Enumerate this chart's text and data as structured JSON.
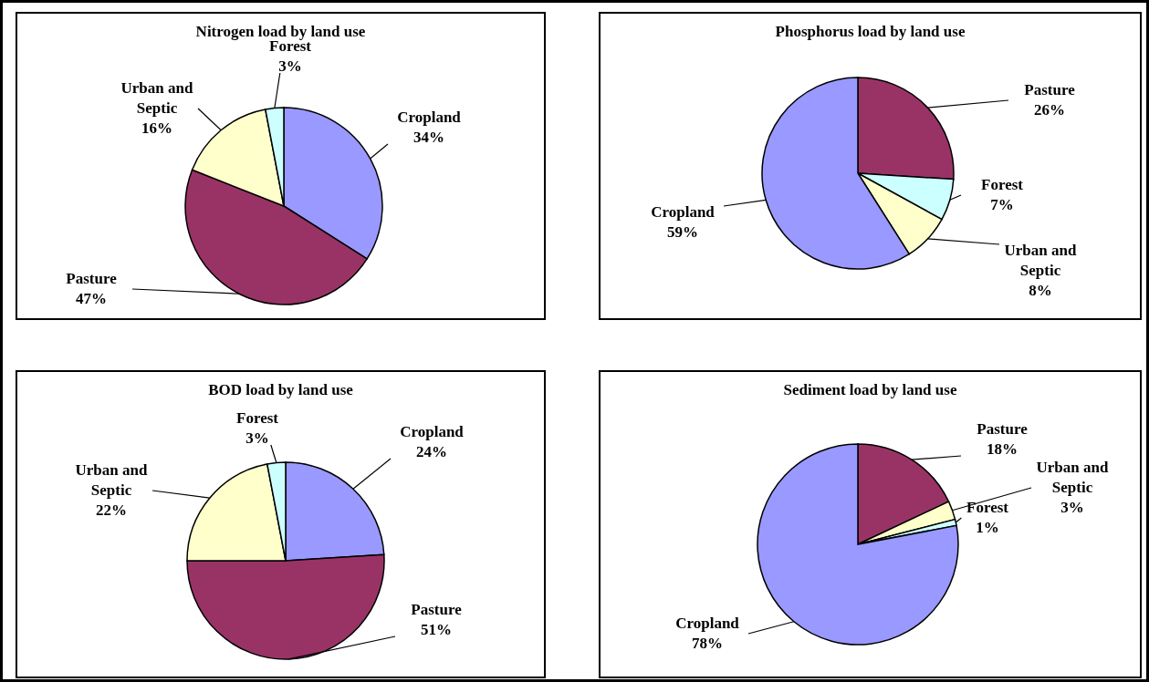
{
  "chart_data": [
    {
      "type": "pie",
      "title": "Nitrogen load by land use",
      "categories": [
        "Cropland",
        "Pasture",
        "Urban and Septic",
        "Forest"
      ],
      "values": [
        34,
        47,
        16,
        3
      ],
      "colors": [
        "#9999ff",
        "#993366",
        "#ffffcc",
        "#ccffff"
      ],
      "value_labels": [
        "34%",
        "47%",
        "16%",
        "3%"
      ]
    },
    {
      "type": "pie",
      "title": "Phosphorus load by land use",
      "categories": [
        "Pasture",
        "Forest",
        "Urban and Septic",
        "Cropland"
      ],
      "values": [
        26,
        7,
        8,
        59
      ],
      "colors": [
        "#993366",
        "#ccffff",
        "#ffffcc",
        "#9999ff"
      ],
      "value_labels": [
        "26%",
        "7%",
        "8%",
        "59%"
      ]
    },
    {
      "type": "pie",
      "title": "BOD load by land use",
      "categories": [
        "Cropland",
        "Pasture",
        "Urban and Septic",
        "Forest"
      ],
      "values": [
        24,
        51,
        22,
        3
      ],
      "colors": [
        "#9999ff",
        "#993366",
        "#ffffcc",
        "#ccffff"
      ],
      "value_labels": [
        "24%",
        "51%",
        "22%",
        "3%"
      ]
    },
    {
      "type": "pie",
      "title": "Sediment load by land use",
      "categories": [
        "Pasture",
        "Urban and Septic",
        "Forest",
        "Cropland"
      ],
      "values": [
        18,
        3,
        1,
        78
      ],
      "colors": [
        "#993366",
        "#ffffcc",
        "#ccffff",
        "#9999ff"
      ],
      "value_labels": [
        "18%",
        "3%",
        "1%",
        "78%"
      ]
    }
  ]
}
